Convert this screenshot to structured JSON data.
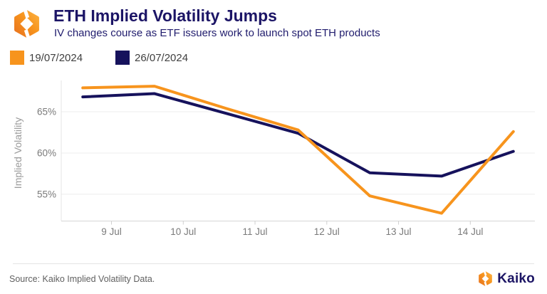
{
  "header": {
    "title": "ETH Implied Volatility Jumps",
    "subtitle": "IV changes course as ETF issuers work to launch spot ETH products",
    "logo_icon": "kaiko-ring-logo"
  },
  "legend": {
    "items": [
      {
        "label": "19/07/2024",
        "color": "#F7941D"
      },
      {
        "label": "26/07/2024",
        "color": "#16125C"
      }
    ]
  },
  "chart_data": {
    "type": "line",
    "title": "ETH Implied Volatility Jumps",
    "subtitle": "IV changes course as ETF issuers work to launch spot ETH products",
    "ylabel": "Implied Volatility",
    "xlabel": "",
    "x_days_july": [
      8.6,
      9.6,
      10.6,
      11.6,
      12.6,
      13.6,
      14.6
    ],
    "xlim": [
      8.3,
      14.9
    ],
    "ylim": [
      51.8,
      68.8
    ],
    "yticks": [
      {
        "value": 55,
        "label": "55%"
      },
      {
        "value": 60,
        "label": "60%"
      },
      {
        "value": 65,
        "label": "65%"
      }
    ],
    "xticks": [
      {
        "value": 9,
        "label": "9 Jul"
      },
      {
        "value": 10,
        "label": "10 Jul"
      },
      {
        "value": 11,
        "label": "11 Jul"
      },
      {
        "value": 12,
        "label": "12 Jul"
      },
      {
        "value": 13,
        "label": "13 Jul"
      },
      {
        "value": 14,
        "label": "14 Jul"
      }
    ],
    "series": [
      {
        "name": "26/07/2024",
        "color": "#16125C",
        "values": [
          66.8,
          67.2,
          64.8,
          62.4,
          57.6,
          57.2,
          60.2
        ]
      },
      {
        "name": "19/07/2024",
        "color": "#F7941D",
        "values": [
          67.9,
          68.1,
          65.4,
          62.8,
          54.8,
          52.7,
          62.6
        ]
      }
    ],
    "grid": "horizontal",
    "legend_position": "top-left",
    "line_width": 4
  },
  "chart_style": {
    "grid_color": "#ECECEC",
    "y_axis_color": "#E4E4E4",
    "x_axis_color": "#D5D5D5",
    "tick_mark_color": "#CFCFCF",
    "tick_label_color": "#7A7A7A",
    "axis_title_color": "#9B9B9B"
  },
  "footer": {
    "source": "Source: Kaiko Implied Volatility Data.",
    "brand": "Kaiko",
    "brand_icon": "kaiko-ring-logo"
  },
  "colors": {
    "accent_orange": "#F7941D",
    "brand_navy": "#1B1464",
    "series_navy": "#16125C"
  }
}
